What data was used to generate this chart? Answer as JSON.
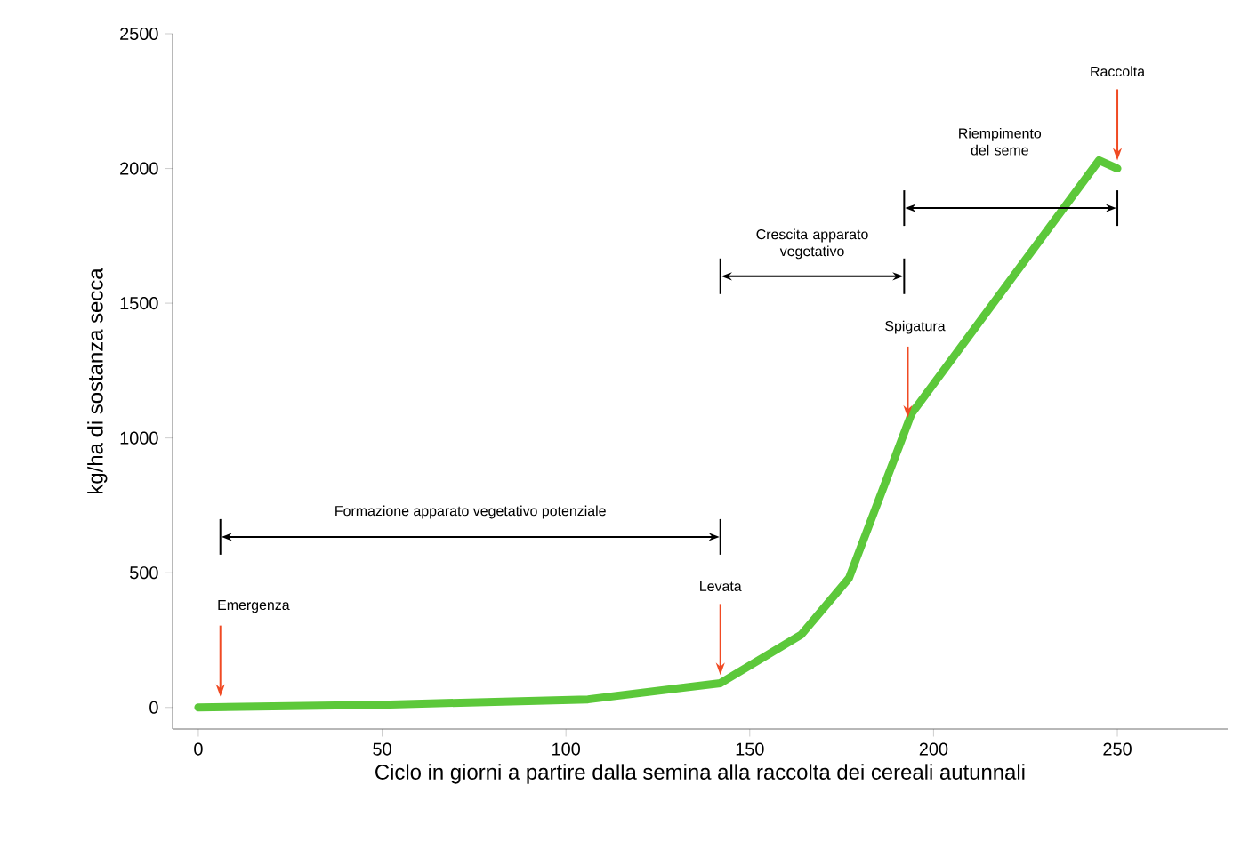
{
  "chart_data": {
    "type": "line",
    "xlabel": "Ciclo in giorni a partire dalla semina alla raccolta dei cereali autunnali",
    "ylabel": "kg/ha di sostanza secca",
    "x": [
      0,
      50,
      106,
      142,
      164,
      177,
      194,
      245,
      250
    ],
    "series": [
      {
        "color": "#5cc83a",
        "values": [
          0,
          10,
          30,
          90,
          270,
          480,
          1090,
          2030,
          2000
        ]
      }
    ],
    "xlim": [
      -7,
      280
    ],
    "ylim": [
      -80,
      2500
    ],
    "xticks": [
      0,
      50,
      100,
      150,
      200,
      250
    ],
    "yticks": [
      0,
      500,
      1000,
      1500,
      2000,
      2500
    ],
    "grid": false,
    "marker": "none",
    "line_style": "solid",
    "annotations": [
      {
        "text": "Emergenza",
        "x": 6,
        "y": 40
      },
      {
        "text": "Levata",
        "x": 142,
        "y": 120
      },
      {
        "text": "Spigatura",
        "x": 193,
        "y": 1075
      },
      {
        "text": "Raccolta",
        "x": 250,
        "y": 2030
      },
      "Formazione apparato vegetativo potenziale",
      "Crescita apparato vegetativo",
      "Riempimento del seme"
    ]
  }
}
